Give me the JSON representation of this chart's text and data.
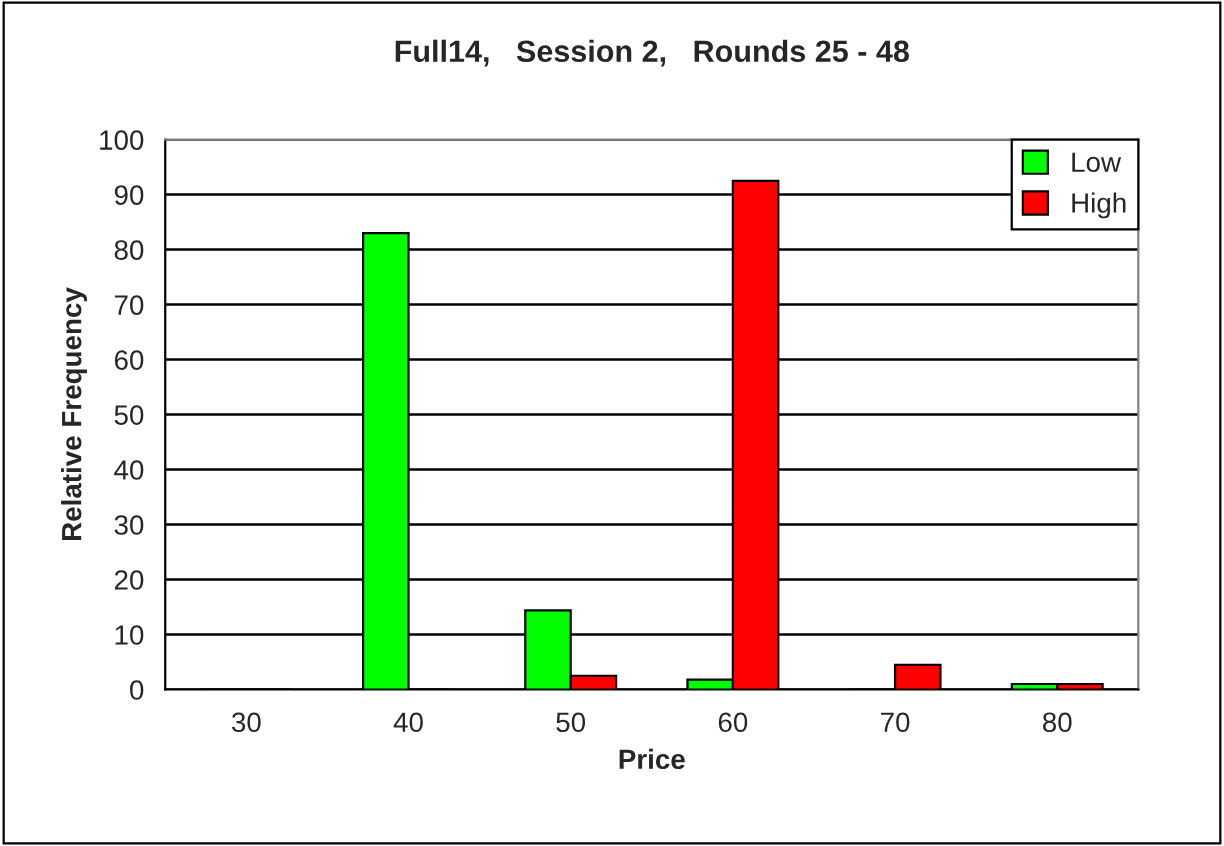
{
  "chart_data": {
    "type": "bar",
    "title": "Full14,   Session 2,   Rounds 25 - 48",
    "xlabel": "Price",
    "ylabel": "Relative Frequency",
    "categories": [
      "30",
      "40",
      "50",
      "60",
      "70",
      "80"
    ],
    "series": [
      {
        "name": "Low",
        "color": "#00ff00",
        "values": [
          0,
          83,
          14.4,
          1.8,
          0,
          1
        ]
      },
      {
        "name": "High",
        "color": "#ff0000",
        "values": [
          0,
          0,
          2.5,
          92.5,
          4.5,
          1
        ]
      }
    ],
    "ylim": [
      0,
      100
    ],
    "yticks": [
      0,
      10,
      20,
      30,
      40,
      50,
      60,
      70,
      80,
      90,
      100
    ],
    "grid": "y",
    "legend": "top right"
  }
}
